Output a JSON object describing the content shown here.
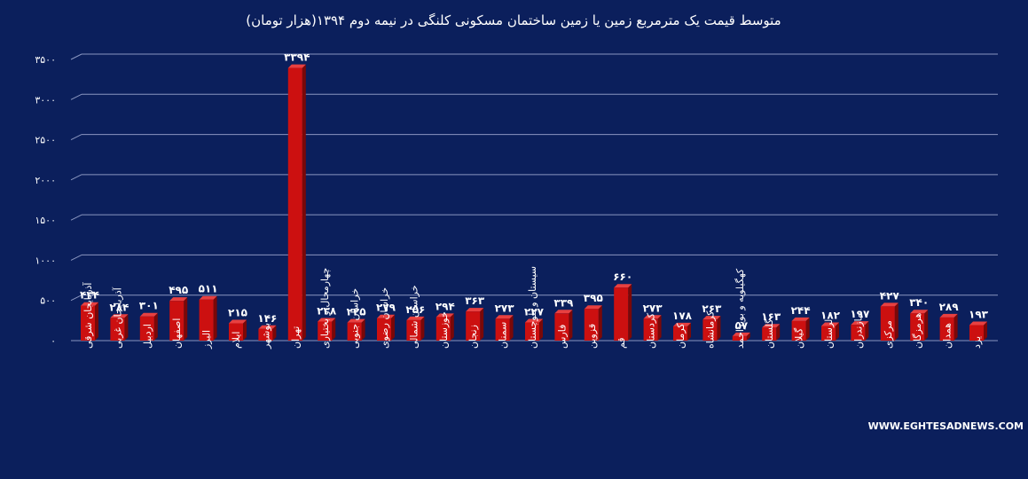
{
  "chart_data": {
    "type": "bar",
    "title": "متوسط قیمت یک مترمربع زمین یا زمین ساختمان مسکونی کلنگی در نیمه دوم ۱۳۹۴(هزار تومان)",
    "categories": [
      "آذربایجان شرقی",
      "آذربایجان غربی",
      "اردبیل",
      "اصفهان",
      "البرز",
      "ایلام",
      "بوشهر",
      "تهران",
      "چهارمحال و بختیاری",
      "خراسان جنوبی",
      "خراسان رضوی",
      "خراسان شمالی",
      "خوزستان",
      "زنجان",
      "سمنان",
      "سیستان و بلوچستان",
      "فارس",
      "قزوین",
      "قم",
      "کردستان",
      "کرمان",
      "کرمانشاه",
      "کهگیلویه و بویراحمد",
      "گلستان",
      "گیلان",
      "لرستان",
      "مازندران",
      "مرکزی",
      "هرمزگان",
      "همدان",
      "یزد"
    ],
    "values": [
      434,
      284,
      301,
      495,
      511,
      215,
      146,
      3394,
      238,
      225,
      279,
      256,
      294,
      363,
      273,
      227,
      339,
      395,
      660,
      273,
      178,
      263,
      57,
      163,
      244,
      182,
      197,
      427,
      340,
      289,
      193
    ],
    "value_labels": [
      "۴۳۴",
      "۲۸۴",
      "۳۰۱",
      "۴۹۵",
      "۵۱۱",
      "۲۱۵",
      "۱۴۶",
      "۳۳۹۴",
      "۲۳۸",
      "۲۲۵",
      "۲۷۹",
      "۲۵۶",
      "۲۹۴",
      "۳۶۳",
      "۲۷۳",
      "۲۲۷",
      "۳۳۹",
      "۳۹۵",
      "۶۶۰",
      "۲۷۳",
      "۱۷۸",
      "۲۶۳",
      "۵۷",
      "۱۶۳",
      "۲۴۴",
      "۱۸۲",
      "۱۹۷",
      "۴۲۷",
      "۳۴۰",
      "۲۸۹",
      "۱۹۳"
    ],
    "yticks": [
      0,
      500,
      1000,
      1500,
      2000,
      2500,
      3000,
      3500
    ],
    "ytick_labels": [
      "۰",
      "۵۰۰",
      "۱۰۰۰",
      "۱۵۰۰",
      "۲۰۰۰",
      "۲۵۰۰",
      "۳۰۰۰",
      "۳۵۰۰"
    ],
    "ylim": [
      0,
      3500
    ],
    "grid": true,
    "bar_color": "#cc1010",
    "bar_side_color": "#7a0808",
    "background_color": "#0b1f5c",
    "gridline_color": "#8a96c0"
  },
  "watermark": "WWW.EGHTESADNEWS.COM"
}
